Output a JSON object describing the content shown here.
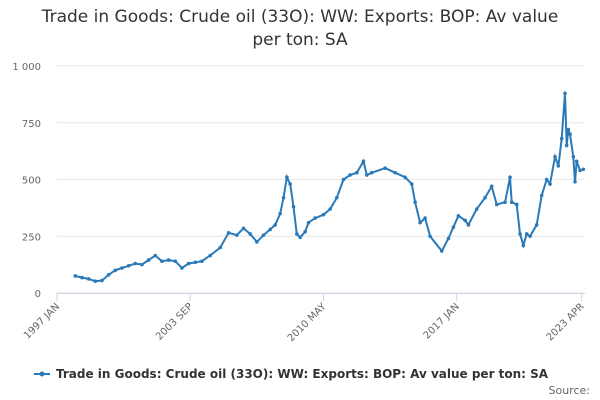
{
  "chart_data": {
    "type": "line",
    "title": "Trade in Goods: Crude oil (33O): WW: Exports: BOP: Av value per ton: SA",
    "x": [
      "1997 DEC",
      "1998 APR",
      "1998 AUG",
      "1998 DEC",
      "1999 APR",
      "1999 AUG",
      "1999 DEC",
      "2000 APR",
      "2000 AUG",
      "2000 DEC",
      "2001 APR",
      "2001 AUG",
      "2001 DEC",
      "2002 APR",
      "2002 AUG",
      "2002 DEC",
      "2003 APR",
      "2003 AUG",
      "2003 DEC",
      "2004 APR",
      "2004 SEP",
      "2005 MAR",
      "2005 AUG",
      "2006 JAN",
      "2006 MAY",
      "2006 SEP",
      "2007 JAN",
      "2007 MAY",
      "2007 SEP",
      "2007 DEC",
      "2008 MAR",
      "2008 MAY",
      "2008 JUL",
      "2008 SEP",
      "2008 NOV",
      "2009 JAN",
      "2009 MAR",
      "2009 JUN",
      "2009 AUG",
      "2009 DEC",
      "2010 MAY",
      "2010 SEP",
      "2011 JAN",
      "2011 MAY",
      "2011 SEP",
      "2012 JAN",
      "2012 MAY",
      "2012 JUL",
      "2012 OCT",
      "2013 JUN",
      "2013 DEC",
      "2014 JUN",
      "2014 OCT",
      "2014 DEC",
      "2015 MAR",
      "2015 JUN",
      "2015 SEP",
      "2016 APR",
      "2016 AUG",
      "2016 NOV",
      "2017 FEB",
      "2017 JUN",
      "2017 AUG",
      "2018 JAN",
      "2018 JUN",
      "2018 OCT",
      "2019 JAN",
      "2019 JUN",
      "2019 SEP",
      "2019 OCT",
      "2020 JAN",
      "2020 MAR",
      "2020 MAY",
      "2020 JUL",
      "2020 SEP",
      "2021 JAN",
      "2021 APR",
      "2021 JUL",
      "2021 SEP",
      "2021 DEC",
      "2022 FEB",
      "2022 APR",
      "2022 JUN",
      "2022 JUL",
      "2022 AUG",
      "2022 SEP",
      "2022 NOV",
      "2022 DEC",
      "2023 JAN",
      "2023 MAR",
      "2023 MAY"
    ],
    "series": [
      {
        "name": "Trade in Goods: Crude oil (33O): WW: Exports: BOP: Av value per ton: SA",
        "color": "#2a7ab9",
        "values": [
          75,
          68,
          62,
          52,
          55,
          80,
          100,
          110,
          120,
          130,
          125,
          145,
          165,
          140,
          145,
          140,
          110,
          130,
          135,
          140,
          165,
          200,
          265,
          255,
          285,
          260,
          225,
          255,
          280,
          300,
          350,
          420,
          510,
          480,
          380,
          260,
          245,
          270,
          310,
          330,
          345,
          370,
          420,
          500,
          520,
          530,
          580,
          520,
          530,
          550,
          530,
          510,
          480,
          400,
          310,
          330,
          250,
          185,
          240,
          290,
          340,
          320,
          300,
          370,
          420,
          470,
          390,
          400,
          510,
          400,
          390,
          260,
          210,
          260,
          250,
          300,
          430,
          500,
          480,
          600,
          560,
          680,
          880,
          650,
          720,
          700,
          600,
          490,
          580,
          540,
          545
        ]
      }
    ],
    "xlim": [
      "1997 JAN",
      "2023 JUN"
    ],
    "xticks": [
      "1997 JAN",
      "2003 SEP",
      "2010 MAY",
      "2017 JAN",
      "2023 APR"
    ],
    "ylim": [
      0,
      1000
    ],
    "yticks": [
      0,
      250,
      500,
      750,
      {
        "value": 1000,
        "label": "1 000"
      }
    ],
    "grid": true,
    "source": "Source:"
  }
}
